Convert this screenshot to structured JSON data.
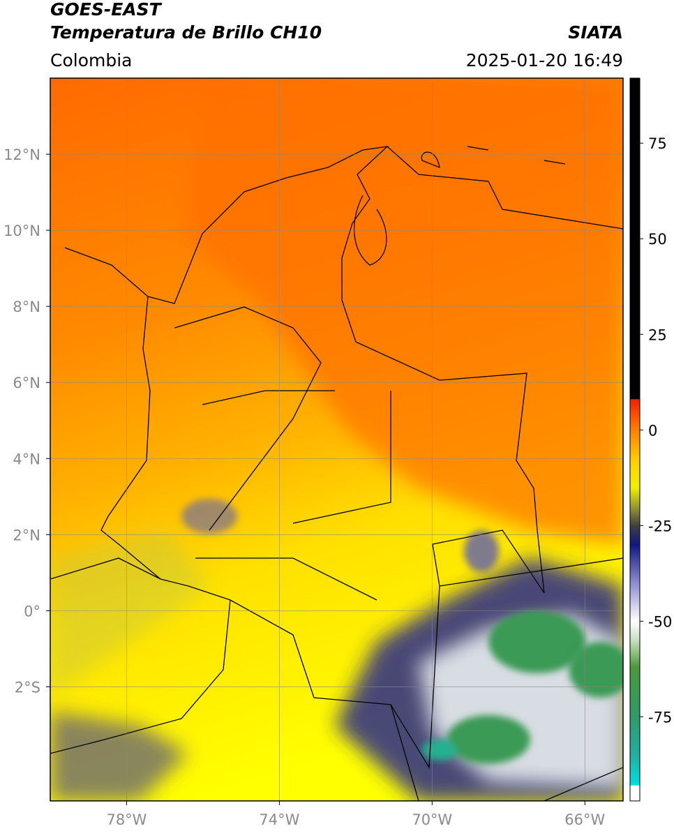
{
  "header": {
    "satellite": "GOES-EAST",
    "product": "Temperatura de Brillo CH10",
    "agency": "SIATA",
    "region": "Colombia",
    "datetime": "2025-01-20 16:49"
  },
  "map": {
    "lonlim": [
      -80,
      -65
    ],
    "latlim": [
      -5,
      14
    ],
    "lonticks": [
      {
        "value": -78,
        "label": "78°W"
      },
      {
        "value": -74,
        "label": "74°W"
      },
      {
        "value": -70,
        "label": "70°W"
      },
      {
        "value": -66,
        "label": "66°W"
      }
    ],
    "latticks": [
      {
        "value": 12,
        "label": "12°N"
      },
      {
        "value": 10,
        "label": "10°N"
      },
      {
        "value": 8,
        "label": "8°N"
      },
      {
        "value": 6,
        "label": "6°N"
      },
      {
        "value": 4,
        "label": "4°N"
      },
      {
        "value": 2,
        "label": "2°N"
      },
      {
        "value": 0,
        "label": "0°"
      },
      {
        "value": -2,
        "label": "2°S"
      }
    ],
    "grid": true
  },
  "colorbar": {
    "lim": [
      -97,
      92
    ],
    "ticks": [
      75,
      50,
      25,
      0,
      -25,
      -50,
      -75
    ],
    "colormap": [
      {
        "value": -97,
        "color": "#ffffff"
      },
      {
        "value": -93,
        "color": "#ffffff"
      },
      {
        "value": -92.9,
        "color": "#00e0e0"
      },
      {
        "value": -85,
        "color": "#20b0a0"
      },
      {
        "value": -75,
        "color": "#2f9a6a"
      },
      {
        "value": -62,
        "color": "#4a9a3a"
      },
      {
        "value": -55,
        "color": "#c8e0c0"
      },
      {
        "value": -50,
        "color": "#ffffff"
      },
      {
        "value": -40,
        "color": "#8c8cd0"
      },
      {
        "value": -30,
        "color": "#101880"
      },
      {
        "value": -25,
        "color": "#404040"
      },
      {
        "value": -20,
        "color": "#9a9a30"
      },
      {
        "value": -15,
        "color": "#f0f000"
      },
      {
        "value": -8,
        "color": "#ffd000"
      },
      {
        "value": 0,
        "color": "#ff8000"
      },
      {
        "value": 8,
        "color": "#f02000"
      },
      {
        "value": 8.1,
        "color": "#000000"
      },
      {
        "value": 92,
        "color": "#000000"
      }
    ]
  }
}
